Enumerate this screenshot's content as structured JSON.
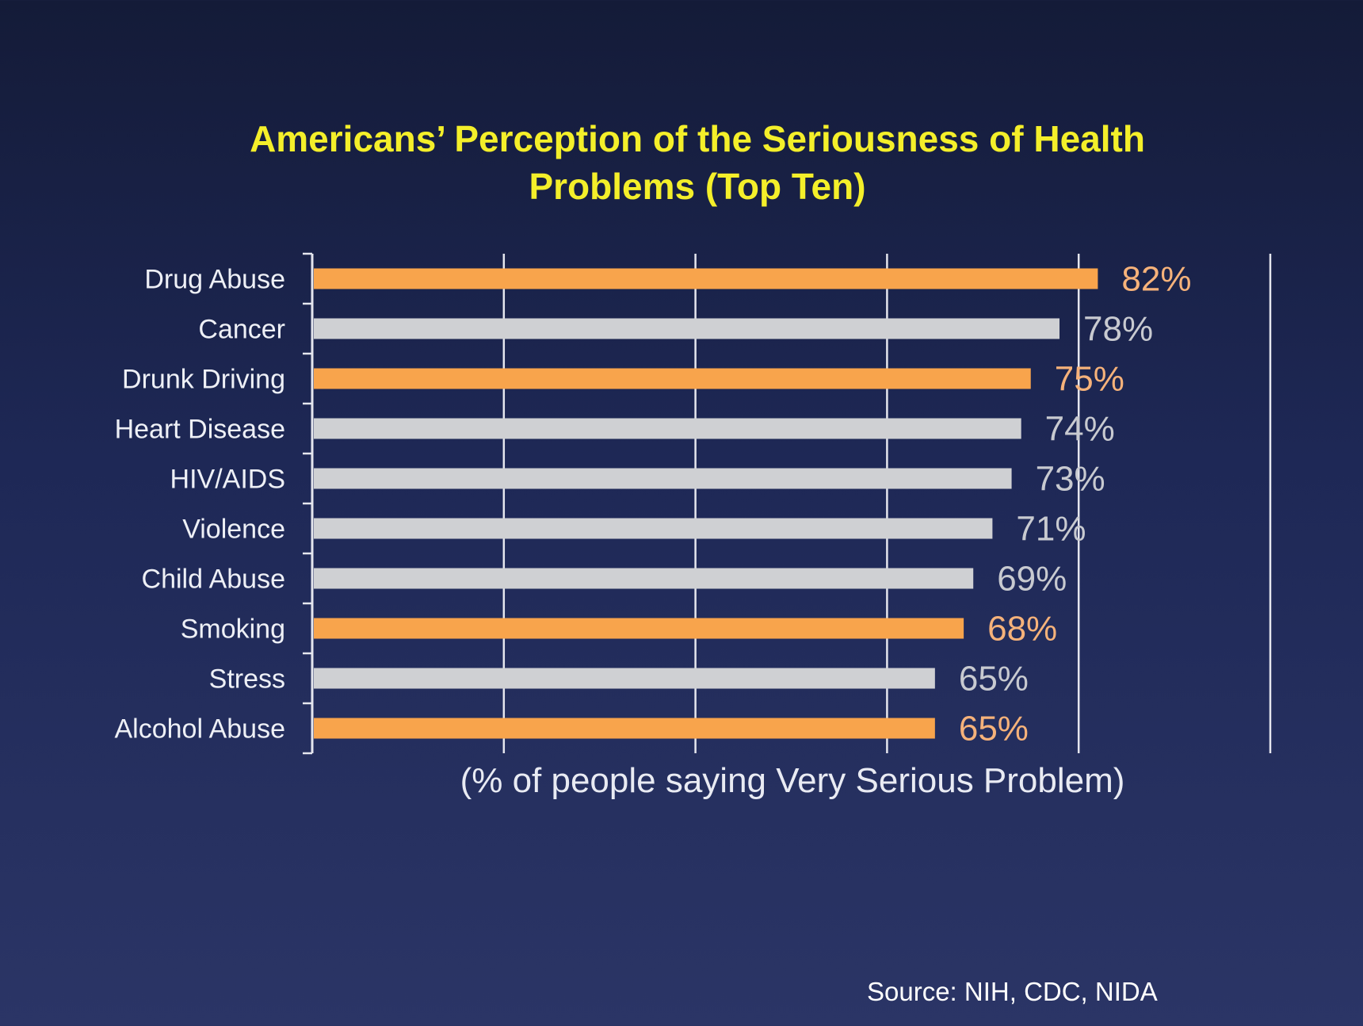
{
  "title_line1": "Americans’ Perception of the Seriousness of Health",
  "title_line2": "Problems (Top Ten)",
  "source": "Source: NIH, CDC, NIDA",
  "colors": {
    "highlight": "#f8a44c",
    "default": "#cfd0d3",
    "title": "#f4ef2a",
    "axis": "#e5e6ee"
  },
  "chart_data": {
    "type": "bar",
    "orientation": "horizontal",
    "title": "Americans’ Perception of the Seriousness of Health Problems (Top Ten)",
    "xlabel": "(% of people saying Very Serious Problem)",
    "ylabel": "",
    "xlim": [
      0,
      100
    ],
    "grid": true,
    "categories": [
      "Drug Abuse",
      "Cancer",
      "Drunk Driving",
      "Heart Disease",
      "HIV/AIDS",
      "Violence",
      "Child Abuse",
      "Smoking",
      "Stress",
      "Alcohol Abuse"
    ],
    "values": [
      82,
      78,
      75,
      74,
      73,
      71,
      69,
      68,
      65,
      65
    ],
    "value_labels": [
      "82%",
      "78%",
      "75%",
      "74%",
      "73%",
      "71%",
      "69%",
      "68%",
      "65%",
      "65%"
    ],
    "highlighted": [
      true,
      false,
      true,
      false,
      false,
      false,
      false,
      true,
      false,
      true
    ]
  }
}
